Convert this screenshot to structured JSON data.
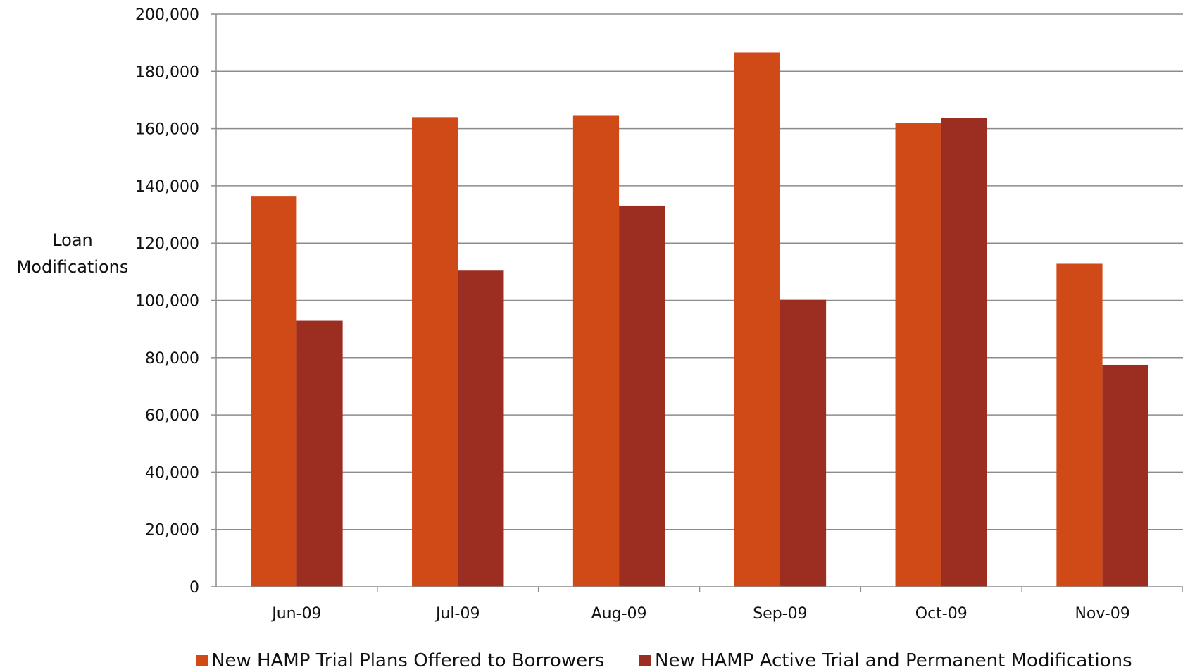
{
  "chart_data": {
    "type": "bar",
    "title": "",
    "ylabel": [
      "Loan",
      "Modifications"
    ],
    "xlabel": "",
    "ylim": [
      0,
      200000
    ],
    "yticks": [
      0,
      20000,
      40000,
      60000,
      80000,
      100000,
      120000,
      140000,
      160000,
      180000,
      200000
    ],
    "ytick_labels": [
      "0",
      "20,000",
      "40,000",
      "60,000",
      "80,000",
      "100,000",
      "120,000",
      "140,000",
      "160,000",
      "180,000",
      "200,000"
    ],
    "grid": true,
    "legend_position": "bottom",
    "categories": [
      "Jun-09",
      "Jul-09",
      "Aug-09",
      "Sep-09",
      "Oct-09",
      "Nov-09"
    ],
    "series": [
      {
        "name": "New HAMP Trial Plans Offered to Borrowers",
        "color": "#D04A18",
        "values": [
          136500,
          164000,
          164700,
          186600,
          161900,
          112800
        ]
      },
      {
        "name": "New HAMP Active Trial and Permanent Modifications",
        "color": "#9B2E21",
        "values": [
          93100,
          110400,
          133100,
          100200,
          163700,
          77500
        ]
      }
    ]
  }
}
